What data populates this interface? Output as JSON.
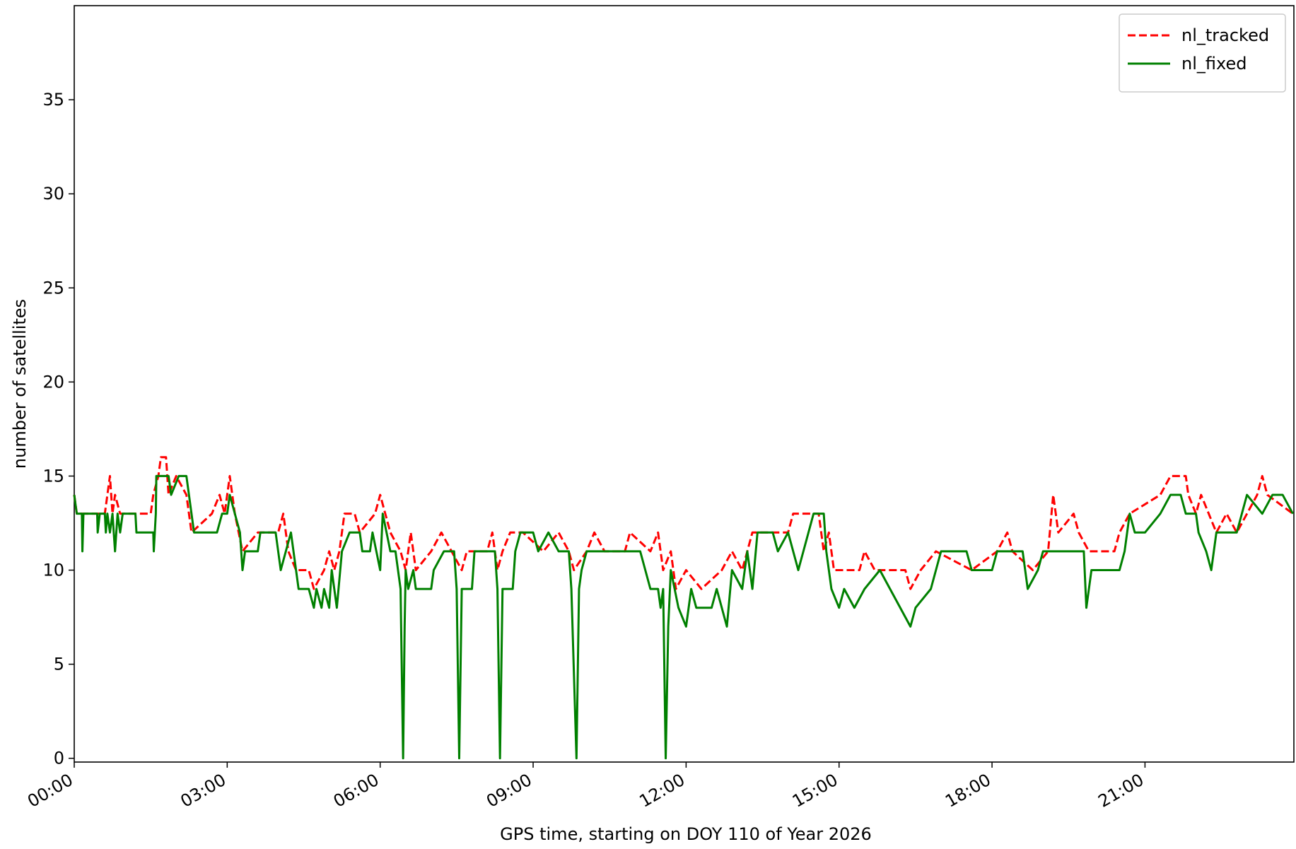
{
  "chart_data": {
    "type": "line",
    "x_label": "GPS time, starting on DOY 110 of Year 2026",
    "y_label": "number of satellites",
    "xlim": [
      0,
      23.92
    ],
    "ylim": [
      -0.2,
      40
    ],
    "xticks": [
      {
        "value": 0,
        "label": "00:00"
      },
      {
        "value": 3,
        "label": "03:00"
      },
      {
        "value": 6,
        "label": "06:00"
      },
      {
        "value": 9,
        "label": "09:00"
      },
      {
        "value": 12,
        "label": "12:00"
      },
      {
        "value": 15,
        "label": "15:00"
      },
      {
        "value": 18,
        "label": "18:00"
      },
      {
        "value": 21,
        "label": "21:00"
      }
    ],
    "yticks": [
      0,
      5,
      10,
      15,
      20,
      25,
      30,
      35
    ],
    "legend": "upper right",
    "series": [
      {
        "name": "nl_tracked",
        "color": "#ff0000",
        "dash": true,
        "x": [
          0,
          0.05,
          0.6,
          0.65,
          0.7,
          0.75,
          0.8,
          0.9,
          1.5,
          1.55,
          1.65,
          1.7,
          1.8,
          1.85,
          2.0,
          2.2,
          2.3,
          2.7,
          2.85,
          2.95,
          3.05,
          3.15,
          3.3,
          3.6,
          4.0,
          4.1,
          4.2,
          4.35,
          4.6,
          4.7,
          4.9,
          5.0,
          5.1,
          5.2,
          5.3,
          5.5,
          5.6,
          5.9,
          6.0,
          6.1,
          6.2,
          6.4,
          6.5,
          6.6,
          6.7,
          7.0,
          7.2,
          7.4,
          7.6,
          7.7,
          8.1,
          8.2,
          8.3,
          8.4,
          8.55,
          8.8,
          9.2,
          9.5,
          9.7,
          9.8,
          10.05,
          10.2,
          10.4,
          10.8,
          10.9,
          11.3,
          11.45,
          11.55,
          11.7,
          11.8,
          12.0,
          12.3,
          12.7,
          12.9,
          13.1,
          13.3,
          14.0,
          14.1,
          14.6,
          14.7,
          14.8,
          14.9,
          15.4,
          15.5,
          15.7,
          16.3,
          16.4,
          16.6,
          16.9,
          17.6,
          18.1,
          18.3,
          18.4,
          18.8,
          19.1,
          19.2,
          19.3,
          19.6,
          19.7,
          19.9,
          20.4,
          20.5,
          20.7,
          21.3,
          21.5,
          21.8,
          21.85,
          22.0,
          22.1,
          22.4,
          22.6,
          22.8,
          23.0,
          23.2,
          23.3,
          23.4,
          23.9
        ],
        "values": [
          14,
          13,
          13,
          14,
          15,
          13,
          14,
          13,
          13,
          14,
          15,
          16,
          16,
          14,
          15,
          14,
          12,
          13,
          14,
          13,
          15,
          13,
          11,
          12,
          12,
          13,
          11,
          10,
          10,
          9,
          10,
          11,
          10,
          11,
          13,
          13,
          12,
          13,
          14,
          13,
          12,
          11,
          10,
          12,
          10,
          11,
          12,
          11,
          10,
          11,
          11,
          12,
          10,
          11,
          12,
          12,
          11,
          12,
          11,
          10,
          11,
          12,
          11,
          11,
          12,
          11,
          12,
          10,
          11,
          9,
          10,
          9,
          10,
          11,
          10,
          12,
          12,
          13,
          13,
          11,
          12,
          10,
          10,
          11,
          10,
          10,
          9,
          10,
          11,
          10,
          11,
          12,
          11,
          10,
          11,
          14,
          12,
          13,
          12,
          11,
          11,
          12,
          13,
          14,
          15,
          15,
          14,
          13,
          14,
          12,
          13,
          12,
          13,
          14,
          15,
          14,
          13
        ]
      },
      {
        "name": "nl_fixed",
        "color": "#008000",
        "x": [
          0,
          0.05,
          0.15,
          0.16,
          0.18,
          0.45,
          0.46,
          0.5,
          0.6,
          0.62,
          0.65,
          0.7,
          0.75,
          0.8,
          0.85,
          0.9,
          0.95,
          1.2,
          1.22,
          1.55,
          1.56,
          1.6,
          1.61,
          1.85,
          1.9,
          2.05,
          2.2,
          2.25,
          2.35,
          2.8,
          2.9,
          3.0,
          3.05,
          3.15,
          3.25,
          3.3,
          3.35,
          3.6,
          3.65,
          3.95,
          4.0,
          4.05,
          4.15,
          4.25,
          4.35,
          4.4,
          4.6,
          4.7,
          4.75,
          4.85,
          4.9,
          5.0,
          5.05,
          5.15,
          5.25,
          5.4,
          5.6,
          5.65,
          5.8,
          5.85,
          6.0,
          6.05,
          6.2,
          6.3,
          6.4,
          6.45,
          6.48,
          6.5,
          6.55,
          6.65,
          6.7,
          7.0,
          7.05,
          7.25,
          7.45,
          7.5,
          7.55,
          7.6,
          7.8,
          7.85,
          8.25,
          8.3,
          8.35,
          8.4,
          8.6,
          8.65,
          8.75,
          9.0,
          9.1,
          9.3,
          9.5,
          9.7,
          9.75,
          9.85,
          9.9,
          9.95,
          10.05,
          11.1,
          11.2,
          11.3,
          11.45,
          11.5,
          11.55,
          11.6,
          11.65,
          11.7,
          11.85,
          12.0,
          12.1,
          12.2,
          12.5,
          12.6,
          12.8,
          12.9,
          13.1,
          13.2,
          13.3,
          13.4,
          13.7,
          13.8,
          14.0,
          14.2,
          14.4,
          14.5,
          14.7,
          14.75,
          14.85,
          15.0,
          15.1,
          15.3,
          15.5,
          15.8,
          16.0,
          16.2,
          16.4,
          16.5,
          16.8,
          17.0,
          17.5,
          17.6,
          18.0,
          18.1,
          18.6,
          18.7,
          18.9,
          19.0,
          19.8,
          19.85,
          19.95,
          20.5,
          20.6,
          20.7,
          20.8,
          21.0,
          21.3,
          21.5,
          21.7,
          21.8,
          22.0,
          22.05,
          22.2,
          22.3,
          22.4,
          22.8,
          22.9,
          23.0,
          23.3,
          23.5,
          23.7,
          23.9
        ],
        "values": [
          14,
          13,
          13,
          11,
          13,
          13,
          12,
          13,
          13,
          12,
          13,
          12,
          13,
          11,
          13,
          12,
          13,
          13,
          12,
          12,
          11,
          13,
          15,
          15,
          14,
          15,
          15,
          14,
          12,
          12,
          13,
          13,
          14,
          13,
          12,
          10,
          11,
          11,
          12,
          12,
          11,
          10,
          11,
          12,
          10,
          9,
          9,
          8,
          9,
          8,
          9,
          8,
          10,
          8,
          11,
          12,
          12,
          11,
          11,
          12,
          10,
          13,
          11,
          11,
          9,
          0,
          7,
          10,
          9,
          10,
          9,
          9,
          10,
          11,
          11,
          9,
          0,
          9,
          9,
          11,
          11,
          9,
          0,
          9,
          9,
          11,
          12,
          12,
          11,
          12,
          11,
          11,
          9,
          0,
          9,
          10,
          11,
          11,
          10,
          9,
          9,
          8,
          9,
          0,
          7,
          10,
          8,
          7,
          9,
          8,
          8,
          9,
          7,
          10,
          9,
          11,
          9,
          12,
          12,
          11,
          12,
          10,
          12,
          13,
          13,
          11,
          9,
          8,
          9,
          8,
          9,
          10,
          9,
          8,
          7,
          8,
          9,
          11,
          11,
          10,
          10,
          11,
          11,
          9,
          10,
          11,
          11,
          8,
          10,
          10,
          11,
          13,
          12,
          12,
          13,
          14,
          14,
          13,
          13,
          12,
          11,
          10,
          12,
          12,
          13,
          14,
          13,
          14,
          14,
          13
        ]
      }
    ]
  }
}
